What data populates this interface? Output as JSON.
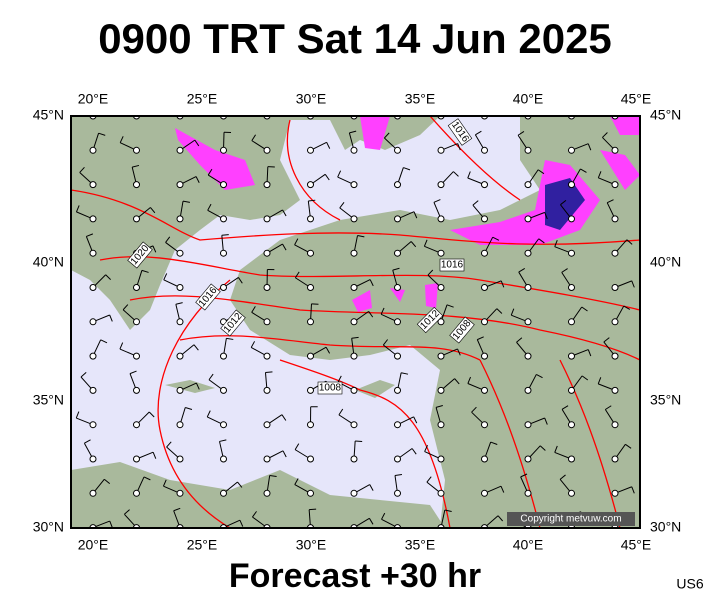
{
  "header": {
    "title": "0900 TRT Sat 14 Jun 2025"
  },
  "map": {
    "lon_labels": [
      "20°E",
      "25°E",
      "30°E",
      "35°E",
      "40°E",
      "45°E"
    ],
    "lat_labels": [
      "45°N",
      "40°N",
      "35°N",
      "30°N"
    ],
    "isobar_labels": [
      "1016",
      "1020",
      "1016",
      "1016",
      "1012",
      "1012",
      "1008",
      "1008"
    ],
    "copyright": "Copyright metvuw.com"
  },
  "footer": {
    "caption": "Forecast +30 hr",
    "code": "US6"
  }
}
